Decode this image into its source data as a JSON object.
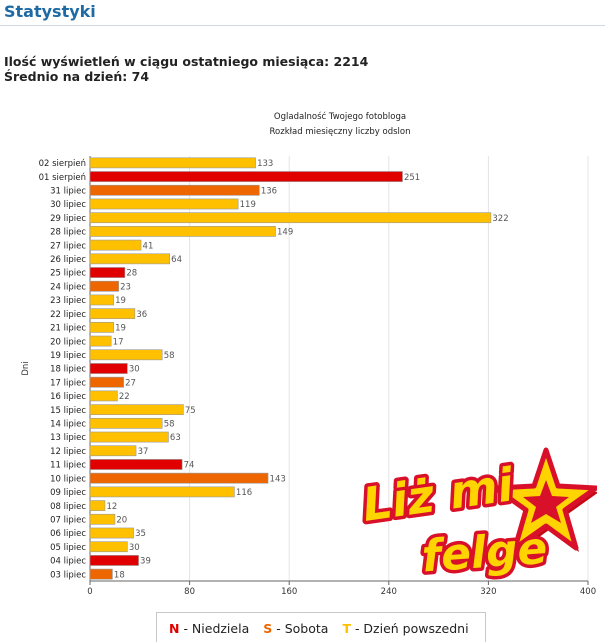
{
  "header": {
    "title": "Statystyki"
  },
  "stats": {
    "views_line": "Ilość wyświetleń w ciągu ostatniego miesiąca: 2214",
    "avg_line": "Średnio na dzień: 74"
  },
  "chart_data": {
    "type": "bar",
    "orientation": "horizontal",
    "title": "Ogladalność Twojego fotobloga",
    "subtitle": "Rozkład miesięczny liczby odslon",
    "xlabel": "",
    "ylabel": "Dni",
    "xlim": [
      0,
      400
    ],
    "xticks": [
      "0",
      "80",
      "160",
      "240",
      "320",
      "400"
    ],
    "grid": true,
    "categories": [
      "02 sierpień",
      "01 sierpień",
      "31 lipiec",
      "30 lipiec",
      "29 lipiec",
      "28 lipiec",
      "27 lipiec",
      "26 lipiec",
      "25 lipiec",
      "24 lipiec",
      "23 lipiec",
      "22 lipiec",
      "21 lipiec",
      "20 lipiec",
      "19 lipiec",
      "18 lipiec",
      "17 lipiec",
      "16 lipiec",
      "15 lipiec",
      "14 lipiec",
      "13 lipiec",
      "12 lipiec",
      "11 lipiec",
      "10 lipiec",
      "09 lipiec",
      "08 lipiec",
      "07 lipiec",
      "06 lipiec",
      "05 lipiec",
      "04 lipiec",
      "03 lipiec"
    ],
    "values": [
      133,
      251,
      136,
      119,
      322,
      149,
      41,
      64,
      28,
      23,
      19,
      36,
      19,
      17,
      58,
      30,
      27,
      22,
      75,
      58,
      63,
      37,
      74,
      143,
      116,
      12,
      20,
      35,
      30,
      39,
      18
    ],
    "day_types": [
      "T",
      "N",
      "S",
      "T",
      "T",
      "T",
      "T",
      "T",
      "N",
      "S",
      "T",
      "T",
      "T",
      "T",
      "T",
      "N",
      "S",
      "T",
      "T",
      "T",
      "T",
      "T",
      "N",
      "S",
      "T",
      "T",
      "T",
      "T",
      "T",
      "N",
      "S"
    ],
    "colors": {
      "N": "#e10000",
      "S": "#ee6600",
      "T": "#ffc000"
    }
  },
  "legend": {
    "items": [
      {
        "key": "N",
        "label": " - Niedziela",
        "color": "#e10000"
      },
      {
        "key": "S",
        "label": " - Sobota",
        "color": "#ee6600"
      },
      {
        "key": "T",
        "label": " - Dzień powszedni",
        "color": "#ffc000"
      }
    ]
  },
  "logo": {
    "line1": "Liż mi",
    "line2": "felge"
  }
}
